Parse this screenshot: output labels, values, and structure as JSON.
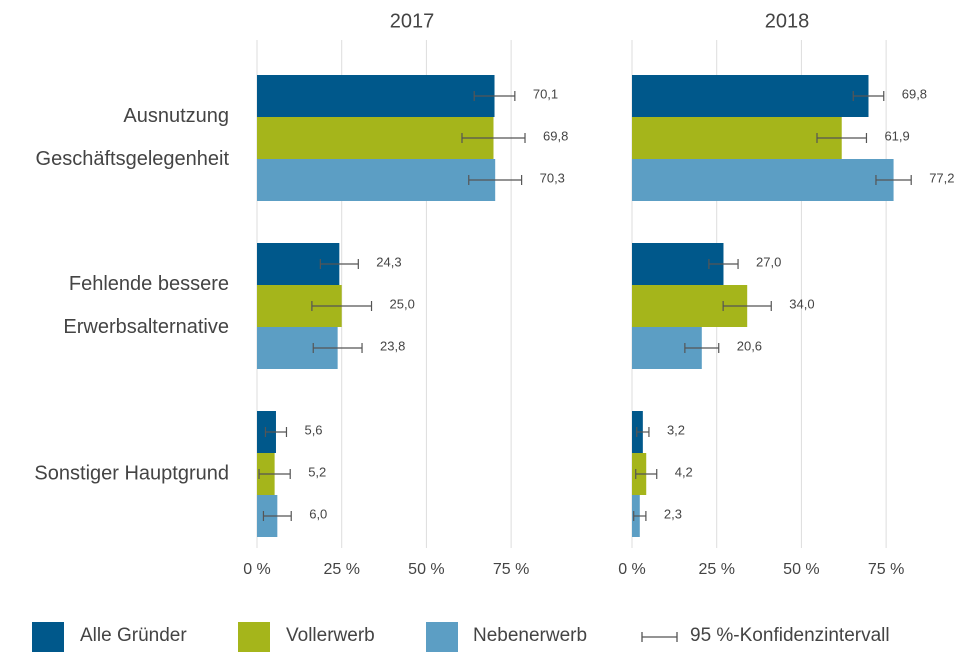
{
  "chart_data": [
    {
      "type": "bar",
      "orientation": "horizontal",
      "title": "2017",
      "categories": [
        "Ausnutzung\nGeschäftsgelegenheit",
        "Fehlende bessere\nErwerbsalternative",
        "Sonstiger Hauptgrund"
      ],
      "series": [
        {
          "name": "Alle Gründer",
          "color": "#00588b",
          "values": [
            70.1,
            24.3,
            5.6
          ],
          "value_labels": [
            "70,1",
            "24,3",
            "5,6"
          ],
          "errors": [
            6,
            5.6,
            3.1
          ]
        },
        {
          "name": "Vollerwerb",
          "color": "#a5b51b",
          "values": [
            69.8,
            25.0,
            5.2
          ],
          "value_labels": [
            "69,8",
            "25,0",
            "5,2"
          ],
          "errors": [
            9.3,
            8.8,
            4.6
          ]
        },
        {
          "name": "Nebenerwerb",
          "color": "#5c9ec4",
          "values": [
            70.3,
            23.8,
            6.0
          ],
          "value_labels": [
            "70,3",
            "23,8",
            "6,0"
          ],
          "errors": [
            7.8,
            7.2,
            4.1
          ]
        }
      ],
      "error_label": "95 %-Konfidenzintervall",
      "xlim": [
        0,
        85
      ],
      "xticks": [
        {
          "value": 0,
          "label": "0 %"
        },
        {
          "value": 25,
          "label": "25 %"
        },
        {
          "value": 50,
          "label": "50 %"
        },
        {
          "value": 75,
          "label": "75 %"
        }
      ],
      "grid": true
    },
    {
      "type": "bar",
      "orientation": "horizontal",
      "title": "2018",
      "series": [
        {
          "color": "#00588b",
          "values": [
            69.8,
            27.0,
            3.2
          ],
          "value_labels": [
            "69,8",
            "27,0",
            "3,2"
          ],
          "errors": [
            4.5,
            4.3,
            1.8
          ]
        },
        {
          "color": "#a5b51b",
          "values": [
            61.9,
            34.0,
            4.2
          ],
          "value_labels": [
            "61,9",
            "34,0",
            "4,2"
          ],
          "errors": [
            7.3,
            7.1,
            3.1
          ]
        },
        {
          "color": "#5c9ec4",
          "values": [
            77.2,
            20.6,
            2.3
          ],
          "value_labels": [
            "77,2",
            "20,6",
            "2,3"
          ],
          "errors": [
            5.2,
            5,
            1.8
          ]
        }
      ],
      "xlim": [
        0,
        85
      ],
      "xticks": [
        {
          "value": 0,
          "label": "0 %"
        },
        {
          "value": 25,
          "label": "25 %"
        },
        {
          "value": 50,
          "label": "50 %"
        },
        {
          "value": 75,
          "label": "75 %"
        }
      ],
      "grid": true
    }
  ]
}
